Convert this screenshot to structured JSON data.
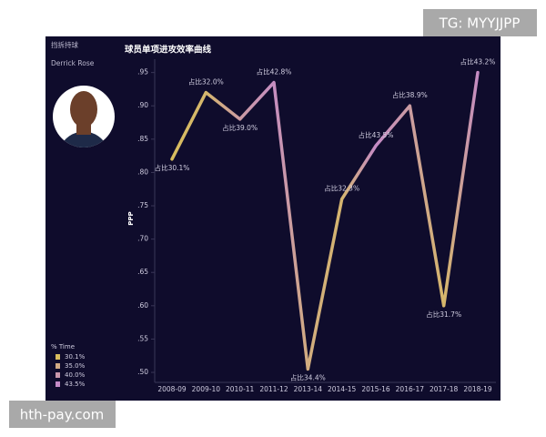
{
  "watermark_top": "TG: MYYJJPP",
  "watermark_bottom": "hth-pay.com",
  "sidebar": {
    "play_type": "挡拆持球",
    "player": "Derrick Rose"
  },
  "chart_data": {
    "type": "line",
    "title": "球员单项进攻效率曲线",
    "y_label": "PPP",
    "categories": [
      "2008-09",
      "2009-10",
      "2010-11",
      "2011-12",
      "2013-14",
      "2014-15",
      "2015-16",
      "2016-17",
      "2017-18",
      "2018-19"
    ],
    "values": [
      0.82,
      0.92,
      0.88,
      0.935,
      0.505,
      0.76,
      0.84,
      0.9,
      0.6,
      0.95
    ],
    "time_share": [
      30.1,
      32.0,
      39.0,
      42.8,
      34.4,
      32.3,
      43.5,
      38.9,
      31.7,
      43.2
    ],
    "time_share_labels": [
      "占比30.1%",
      "占比32.0%",
      "占比39.0%",
      "占比42.8%",
      "占比34.4%",
      "占比32.3%",
      "占比43.5%",
      "占比38.9%",
      "占比31.7%",
      "占比43.2%"
    ],
    "ylim": [
      0.485,
      0.97
    ],
    "yticks": [
      {
        "value": 0.5,
        "label": ".50"
      },
      {
        "value": 0.55,
        "label": ".55"
      },
      {
        "value": 0.6,
        "label": ".60"
      },
      {
        "value": 0.65,
        "label": ".65"
      },
      {
        "value": 0.7,
        "label": ".70"
      },
      {
        "value": 0.75,
        "label": ".75"
      },
      {
        "value": 0.8,
        "label": ".80"
      },
      {
        "value": 0.85,
        "label": ".85"
      },
      {
        "value": 0.9,
        "label": ".90"
      },
      {
        "value": 0.95,
        "label": ".95"
      }
    ],
    "color_scale": {
      "title": "% Time",
      "low_color": "#d8bd5e",
      "high_color": "#c48ac6",
      "entries": [
        {
          "value": 30.1,
          "label": "30.1%"
        },
        {
          "value": 35.0,
          "label": "35.0%"
        },
        {
          "value": 40.0,
          "label": "40.0%"
        },
        {
          "value": 43.5,
          "label": "43.5%"
        }
      ]
    }
  }
}
